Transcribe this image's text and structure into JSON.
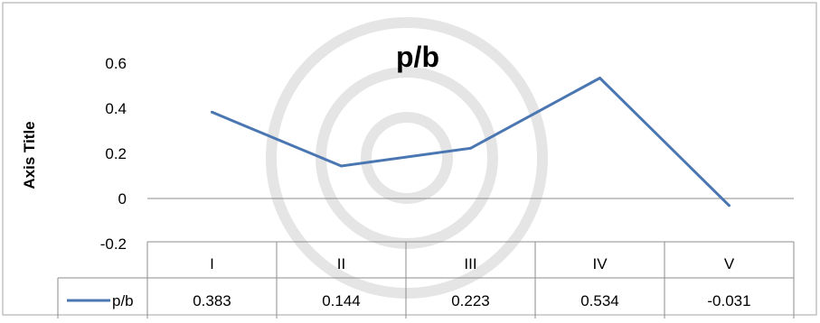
{
  "chart_data": {
    "type": "line",
    "title": "p/b",
    "ylabel": "Axis Title",
    "xlabel": "",
    "categories": [
      "I",
      "II",
      "III",
      "IV",
      "V"
    ],
    "series": [
      {
        "name": "p/b",
        "values": [
          0.383,
          0.144,
          0.223,
          0.534,
          -0.031
        ]
      }
    ],
    "data_table": {
      "header": [
        "I",
        "II",
        "III",
        "IV",
        "V"
      ],
      "rows": [
        {
          "series": "p/b",
          "values": [
            "0.383",
            "0.144",
            "0.223",
            "0.534",
            "-0.031"
          ]
        }
      ]
    },
    "ylim": [
      -0.2,
      0.6
    ],
    "yticks": [
      "0.6",
      "0.4",
      "0.2",
      "0",
      "-0.2"
    ],
    "line_color": "#4a76b2",
    "grid": false,
    "legend": "in data table"
  }
}
